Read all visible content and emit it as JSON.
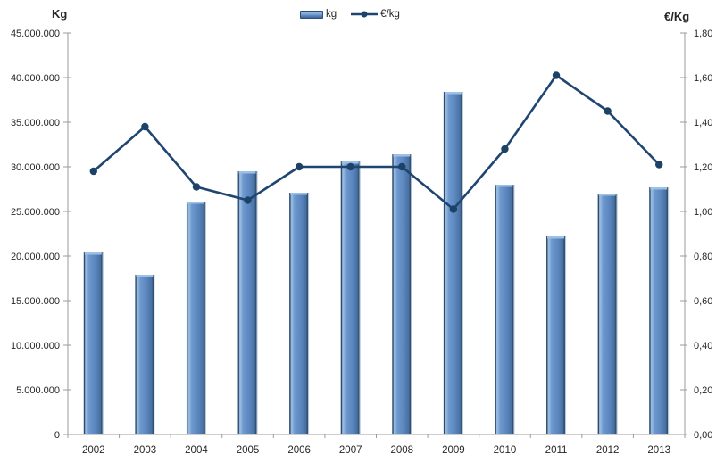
{
  "chart_data": {
    "type": "bar+line",
    "title": "",
    "categories": [
      "2002",
      "2003",
      "2004",
      "2005",
      "2006",
      "2007",
      "2008",
      "2009",
      "2010",
      "2011",
      "2012",
      "2013"
    ],
    "series": [
      {
        "name": "kg",
        "type": "bar",
        "axis": "left",
        "values": [
          20400000,
          17900000,
          26100000,
          29500000,
          27100000,
          30600000,
          31400000,
          38400000,
          28000000,
          22200000,
          27000000,
          27700000
        ]
      },
      {
        "name": "€/kg",
        "type": "line",
        "axis": "right",
        "values": [
          1.18,
          1.38,
          1.11,
          1.05,
          1.2,
          1.2,
          1.2,
          1.01,
          1.28,
          1.61,
          1.45,
          1.21
        ]
      }
    ],
    "left_axis": {
      "title": "Kg",
      "min": 0,
      "max": 45000000,
      "ticks": [
        "45.000.000",
        "40.000.000",
        "35.000.000",
        "30.000.000",
        "25.000.000",
        "20.000.000",
        "15.000.000",
        "10.000.000",
        "5.000.000",
        "0"
      ]
    },
    "right_axis": {
      "title": "€/Kg",
      "min": 0,
      "max": 1.8,
      "ticks": [
        "1,80",
        "1,60",
        "1,40",
        "1,20",
        "1,00",
        "0,80",
        "0,60",
        "0,40",
        "0,20",
        "0,00"
      ]
    },
    "legend": {
      "position": "top-center",
      "items": [
        {
          "label": "kg",
          "marker": "bar-swatch"
        },
        {
          "label": "€/kg",
          "marker": "line-dot-swatch"
        }
      ]
    },
    "grid": "off",
    "colors": {
      "bar_fill": "#5d87bf",
      "bar_highlight": "#9abce2",
      "bar_edge_dark": "#2c4a6b",
      "bar_top_cap": "#9dc1e6",
      "line": "#1f4571",
      "marker": "#1d4268",
      "axis": "#9b9b9b",
      "text": "#262626"
    }
  }
}
